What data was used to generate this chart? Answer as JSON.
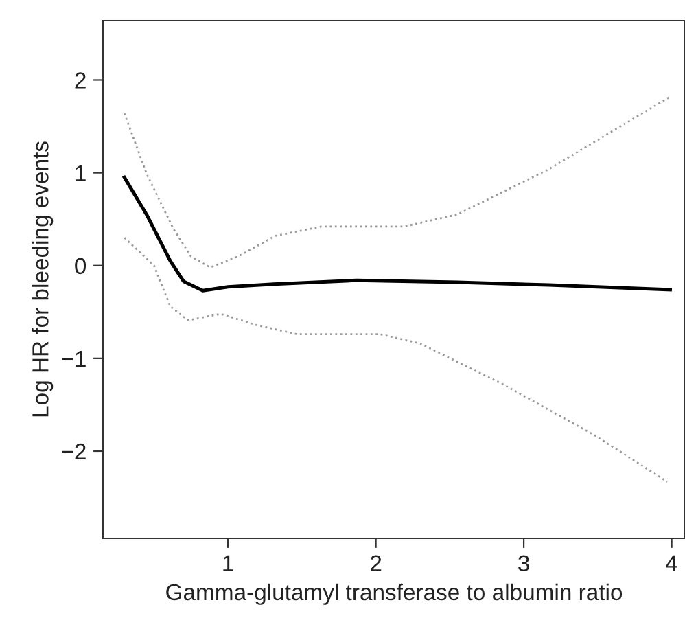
{
  "chart_data": {
    "type": "line",
    "xlabel": "Gamma-glutamyl transferase to albumin ratio",
    "ylabel": "Log HR for bleeding events",
    "xlim": [
      0.155,
      4.09
    ],
    "ylim": [
      -2.94,
      2.64
    ],
    "xticks": [
      1,
      2,
      3,
      4
    ],
    "yticks": [
      -2,
      -1,
      0,
      1,
      2
    ],
    "grid": false,
    "legend": false,
    "series": [
      {
        "color": "#000000",
        "line_style": "solid",
        "x": [
          0.3,
          0.45,
          0.61,
          0.7,
          0.83,
          1.0,
          1.31,
          1.87,
          2.55,
          3.17,
          3.99
        ],
        "values": [
          0.95,
          0.55,
          0.05,
          -0.17,
          -0.27,
          -0.23,
          -0.2,
          -0.16,
          -0.18,
          -0.21,
          -0.26
        ]
      },
      {
        "color": "#999999",
        "line_style": "dotted",
        "x": [
          0.3,
          0.45,
          0.63,
          0.75,
          0.88,
          1.07,
          1.32,
          1.63,
          2.19,
          2.55,
          3.17,
          3.99
        ],
        "values": [
          1.64,
          0.99,
          0.4,
          0.1,
          -0.02,
          0.1,
          0.32,
          0.42,
          0.42,
          0.55,
          1.04,
          1.82
        ]
      },
      {
        "color": "#999999",
        "line_style": "dotted",
        "x": [
          0.3,
          0.5,
          0.61,
          0.73,
          0.95,
          1.19,
          1.47,
          2.03,
          2.3,
          2.86,
          3.48,
          3.97
        ],
        "values": [
          0.3,
          0.0,
          -0.44,
          -0.59,
          -0.52,
          -0.64,
          -0.74,
          -0.74,
          -0.84,
          -1.28,
          -1.83,
          -2.33
        ]
      }
    ]
  }
}
